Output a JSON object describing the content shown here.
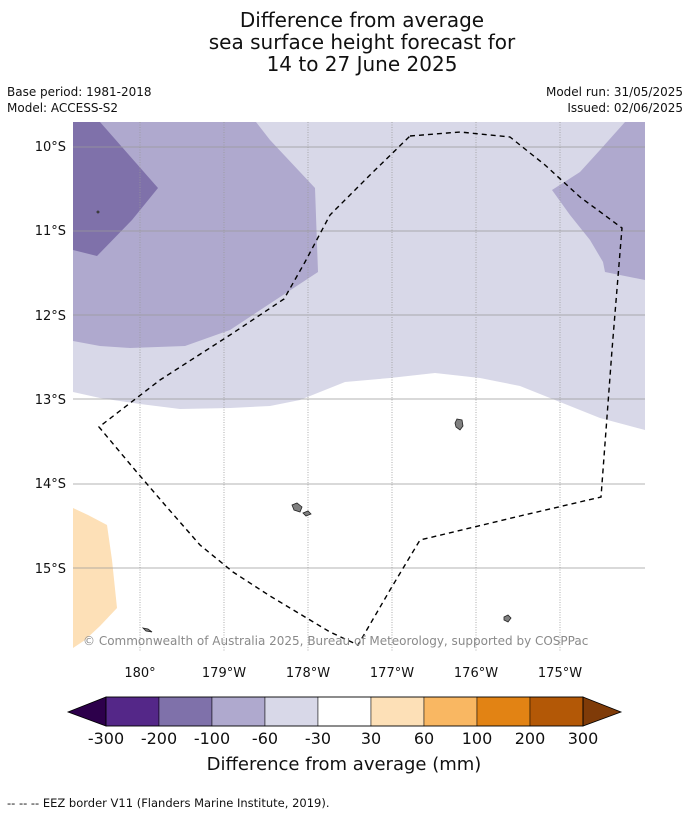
{
  "title": {
    "line1": "Difference from average",
    "line2": "sea surface height forecast for",
    "line3": "14 to 27 June 2025"
  },
  "meta": {
    "base_period": "Base period: 1981-2018",
    "model": "Model: ACCESS-S2",
    "model_run": "Model run: 31/05/2025",
    "issued": "Issued: 02/06/2025"
  },
  "map": {
    "lat_labels": [
      "10°S",
      "11°S",
      "12°S",
      "13°S",
      "14°S",
      "15°S"
    ],
    "lon_labels": [
      "180°",
      "179°W",
      "178°W",
      "177°W",
      "176°W",
      "175°W"
    ],
    "copyright": "© Commonwealth of Australia 2025, Bureau of Meteorology, supported by COSPPac",
    "colors": {
      "lt_minus200": "#5a2a8a",
      "m200_m100": "#7f71aa",
      "m100_m60": "#afa9ce",
      "m60_m30": "#d8d8e8",
      "m30_30": "#ffffff",
      "30_60": "#fde0b7",
      "60_100": "#f9b762",
      "100_200": "#e28314",
      "200_300": "#b35806",
      "gt_300": "#7f3b08",
      "land": "#808080",
      "eez": "#000000",
      "grid": "#9a9a9a"
    }
  },
  "colorbar": {
    "tick_labels": [
      "-300",
      "-200",
      "-100",
      "-60",
      "-30",
      "30",
      "60",
      "100",
      "200",
      "300"
    ],
    "title": "Difference from average (mm)",
    "low_extend_color": "#2d004b",
    "high_extend_color": "#7f3b08",
    "segment_colors": [
      "#542788",
      "#7f71aa",
      "#afa9ce",
      "#d8d8e8",
      "#ffffff",
      "#fde0b7",
      "#f9b762",
      "#e28314",
      "#b35806"
    ]
  },
  "footnote": "--  --  -- EEZ border V11 (Flanders Marine Institute, 2019)."
}
